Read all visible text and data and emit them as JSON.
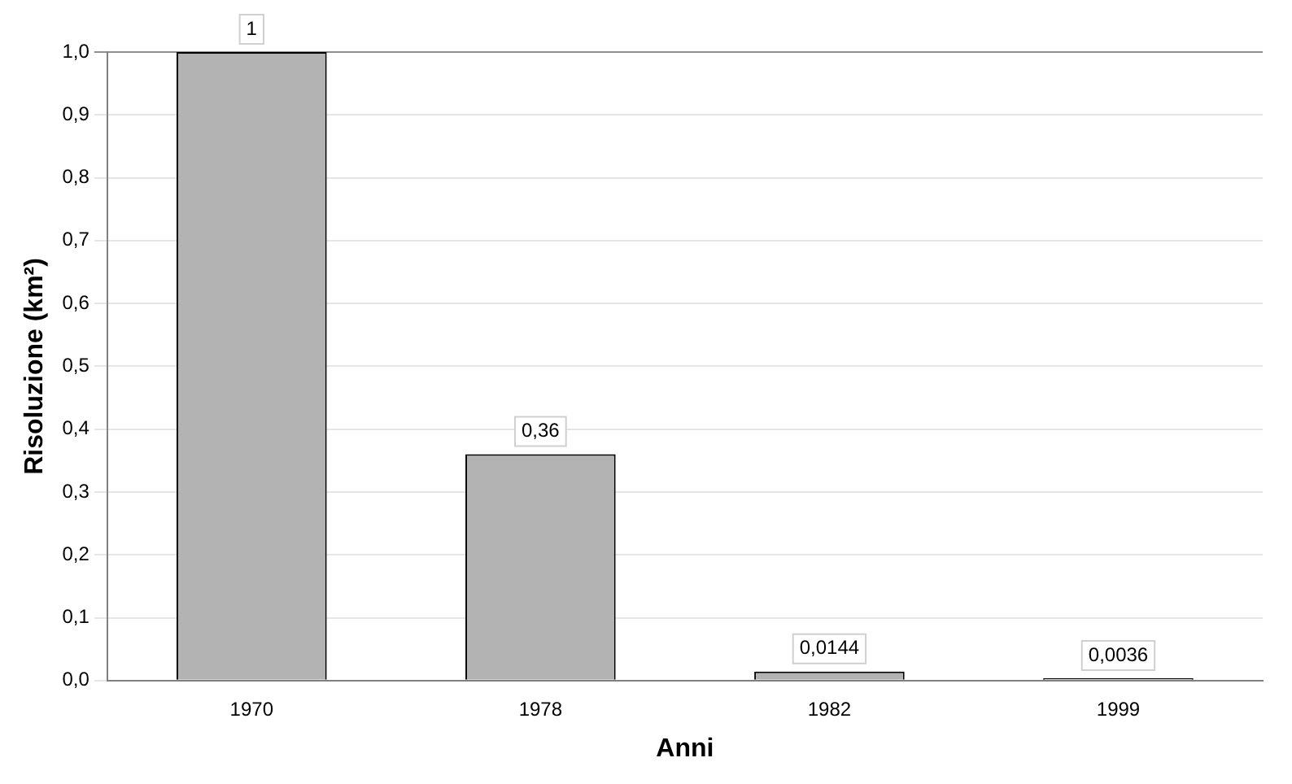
{
  "chart_data": {
    "type": "bar",
    "xlabel": "Anni",
    "ylabel": "Risoluzione (km²)",
    "categories": [
      "1970",
      "1978",
      "1982",
      "1999"
    ],
    "values": [
      1,
      0.36,
      0.0144,
      0.0036
    ],
    "value_labels": [
      "1",
      "0,36",
      "0,0144",
      "0,0036"
    ],
    "color": "#b3b3b3",
    "ylim": [
      0,
      1
    ],
    "yticks": [
      {
        "value": 0,
        "label": "0,0"
      },
      {
        "value": 0.1,
        "label": "0,1"
      },
      {
        "value": 0.2,
        "label": "0,2"
      },
      {
        "value": 0.3,
        "label": "0,3"
      },
      {
        "value": 0.4,
        "label": "0,4"
      },
      {
        "value": 0.5,
        "label": "0,5"
      },
      {
        "value": 0.6,
        "label": "0,6"
      },
      {
        "value": 0.7,
        "label": "0,7"
      },
      {
        "value": 0.8,
        "label": "0,8"
      },
      {
        "value": 0.9,
        "label": "0,9"
      },
      {
        "value": 1,
        "label": "1,0"
      }
    ],
    "grid": "y",
    "legend": false
  }
}
